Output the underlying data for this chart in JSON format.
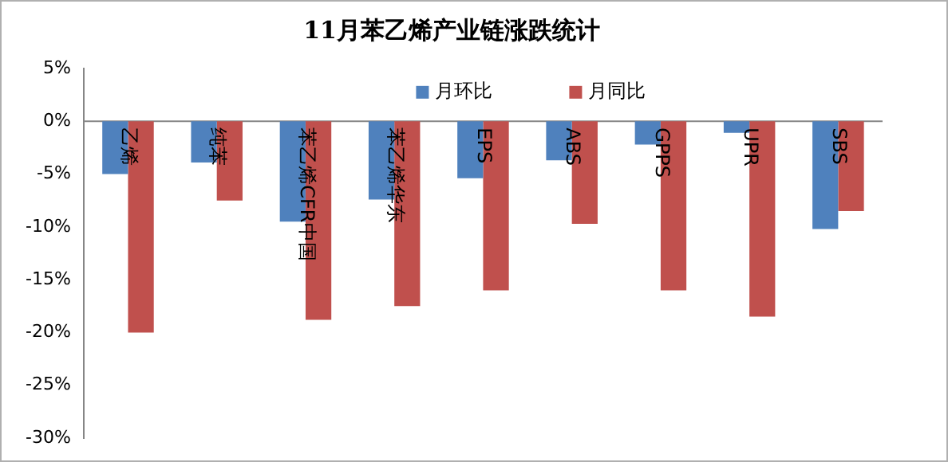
{
  "chart_data": {
    "type": "bar",
    "title": "11月苯乙烯产业链涨跌统计",
    "categories": [
      "乙烯",
      "纯苯",
      "苯乙烯CFR中国",
      "苯乙烯华东",
      "EPS",
      "ABS",
      "GPPS",
      "UPR",
      "SBS"
    ],
    "series": [
      {
        "name": "月环比",
        "color": "#4f81bd",
        "values": [
          -5.0,
          -3.9,
          -9.5,
          -7.4,
          -5.4,
          -3.7,
          -2.2,
          -1.1,
          -10.2
        ]
      },
      {
        "name": "月同比",
        "color": "#c0504d",
        "values": [
          -20.0,
          -7.5,
          -18.8,
          -17.5,
          -16.0,
          -9.7,
          -16.0,
          -18.5,
          -8.5
        ]
      }
    ],
    "ylim": [
      -30,
      5
    ],
    "yticks": [
      {
        "value": 5,
        "label": "5%"
      },
      {
        "value": 0,
        "label": "0%"
      },
      {
        "value": -5,
        "label": "-5%"
      },
      {
        "value": -10,
        "label": "-10%"
      },
      {
        "value": -15,
        "label": "-15%"
      },
      {
        "value": -20,
        "label": "-20%"
      },
      {
        "value": -25,
        "label": "-25%"
      },
      {
        "value": -30,
        "label": "-30%"
      }
    ],
    "grid": false,
    "legend": "top"
  }
}
